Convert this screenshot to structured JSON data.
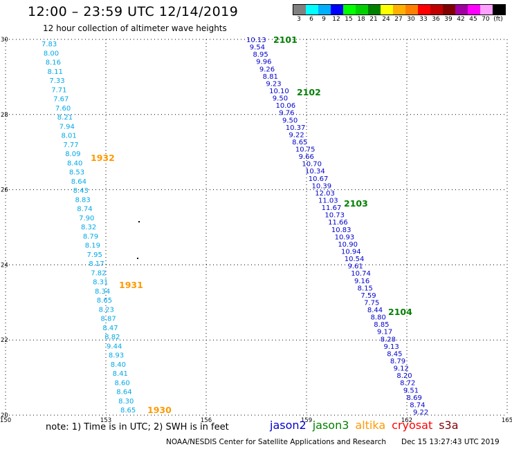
{
  "header": {
    "title": "12:00 – 23:59 UTC 12/14/2019",
    "subtitle": "12 hour collection of altimeter wave heights"
  },
  "legend": {
    "colors": [
      "#808080",
      "#00ffff",
      "#00b0ff",
      "#0000ff",
      "#00ff00",
      "#00d000",
      "#008000",
      "#ffff00",
      "#ffb000",
      "#ff8000",
      "#ff0000",
      "#c00000",
      "#800000",
      "#a000a0",
      "#ff00ff",
      "#ffa0ff",
      "#000000"
    ],
    "labels": [
      "3",
      "6",
      "9",
      "12",
      "15",
      "18",
      "21",
      "24",
      "27",
      "30",
      "33",
      "36",
      "39",
      "42",
      "45",
      "70",
      "(ft)"
    ]
  },
  "map_data": {
    "x_ticks": [
      "150",
      "153",
      "156",
      "159",
      "162",
      "165"
    ],
    "y_ticks": [
      "30",
      "28",
      "26",
      "24",
      "22",
      "20"
    ],
    "x_range": [
      150,
      165
    ],
    "y_range": [
      20,
      30
    ],
    "colors": {
      "west_track": "#00a8e8",
      "east_track": "#0000cc",
      "pass_label_west": "#ff9900",
      "pass_label_east": "#008000"
    },
    "west_values": [
      "7.83",
      "8.00",
      "8.16",
      "8.11",
      "7.33",
      "7.71",
      "7.67",
      "7.60",
      "8.21",
      "7.94",
      "8.01",
      "7.77",
      "8.09",
      "8.40",
      "8.53",
      "8.64",
      "8.43",
      "8.83",
      "8.74",
      "7.90",
      "8.32",
      "8.79",
      "8.19",
      "7.95",
      "8.17",
      "7.82",
      "8.31",
      "8.34",
      "8.65",
      "8.23",
      "8.87",
      "8.47",
      "8.82",
      "9.44",
      "8.93",
      "8.40",
      "8.41",
      "8.60",
      "8.64",
      "8.30",
      "8.65"
    ],
    "east_values": [
      "10.13",
      "9.54",
      "8.95",
      "9.96",
      "9.26",
      "8.81",
      "9.23",
      "10.10",
      "9.50",
      "10.06",
      "9.76",
      "9.50",
      "10.37",
      "9.22",
      "8.65",
      "10.75",
      "9.66",
      "10.70",
      "10.34",
      "10.67",
      "10.39",
      "12.03",
      "11.03",
      "11.67",
      "10.73",
      "11.66",
      "10.83",
      "10.93",
      "10.90",
      "10.94",
      "10.54",
      "9.61",
      "10.74",
      "9.16",
      "8.15",
      "7.59",
      "7.75",
      "8.44",
      "8.80",
      "8.85",
      "9.17",
      "8.28",
      "9.13",
      "8.45",
      "8.79",
      "9.12",
      "8.20",
      "8.72",
      "9.51",
      "8.69",
      "8.74",
      "9.22"
    ],
    "west_pass_labels": [
      "1932",
      "1931",
      "1930"
    ],
    "east_pass_labels": [
      "2101",
      "2102",
      "2103",
      "2104"
    ]
  },
  "footer": {
    "note": "note:  1) Time is in UTC;  2) SWH is in feet",
    "satellites": [
      {
        "name": "jason2",
        "color": "#0000cc"
      },
      {
        "name": "jason3",
        "color": "#008000"
      },
      {
        "name": "altika",
        "color": "#ff9900"
      },
      {
        "name": "cryosat",
        "color": "#ff0000"
      },
      {
        "name": "s3a",
        "color": "#800000"
      }
    ],
    "credit": "NOAA/NESDIS Center for Satellite Applications and Research",
    "timestamp": "Dec 15 13:27:43 UTC 2019"
  }
}
